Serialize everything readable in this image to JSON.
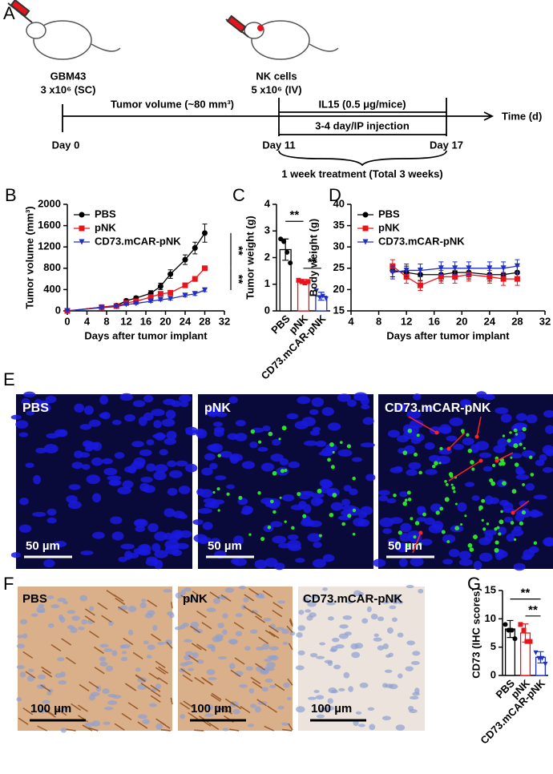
{
  "panel_labels": [
    "A",
    "B",
    "C",
    "D",
    "E",
    "F",
    "G"
  ],
  "timeline": {
    "left_cells": "GBM43",
    "left_dose": "3 x10⁶ (SC)",
    "right_cells": "NK cells",
    "right_dose": "5 x10⁶ (IV)",
    "phase1": "Tumor volume (~80 mm³)",
    "phase2": "IL15 (0.5 μg/mice)",
    "phase3": "3-4 day/IP injection",
    "axis": "Time (d)",
    "day_start": "Day 0",
    "day_mid": "Day 11",
    "day_end": "Day 17",
    "treatment": "1 week treatment (Total 3 weeks)"
  },
  "images_e": {
    "labels": [
      "PBS",
      "pNK",
      "CD73.mCAR-pNK"
    ],
    "scale": "50 µm"
  },
  "images_f": {
    "labels": [
      "PBS",
      "pNK",
      "CD73.mCAR-pNK"
    ],
    "scale": "100 µm"
  },
  "chart_data": [
    {
      "type": "line",
      "xlabel": "Days after tumor implant",
      "ylabel": "Tumor volume (mm³)",
      "x": [
        0,
        7,
        10,
        12,
        14,
        17,
        19,
        21,
        24,
        26,
        28
      ],
      "xlim": [
        0,
        32
      ],
      "xticks": [
        0,
        4,
        8,
        12,
        16,
        20,
        24,
        28,
        32
      ],
      "ylim": [
        0,
        2000
      ],
      "yticks": [
        0,
        400,
        800,
        1200,
        1600,
        2000
      ],
      "series": [
        {
          "name": "PBS",
          "color": "#000000",
          "values": [
            0,
            70,
            100,
            190,
            240,
            330,
            460,
            690,
            960,
            1180,
            1460
          ],
          "errors": [
            0,
            10,
            15,
            30,
            35,
            50,
            60,
            80,
            90,
            110,
            170
          ]
        },
        {
          "name": "pNK",
          "color": "#e8141b",
          "values": [
            0,
            70,
            90,
            150,
            180,
            260,
            320,
            340,
            480,
            600,
            800
          ],
          "errors": [
            0,
            10,
            10,
            20,
            25,
            30,
            35,
            40,
            40,
            45,
            40
          ]
        },
        {
          "name": "CD73.mCAR-pNK",
          "color": "#1f2fc4",
          "values": [
            0,
            60,
            80,
            120,
            140,
            180,
            210,
            230,
            290,
            320,
            390
          ],
          "errors": [
            0,
            8,
            10,
            15,
            15,
            20,
            20,
            25,
            25,
            30,
            30
          ]
        }
      ],
      "annotations": [
        "**",
        "**"
      ]
    },
    {
      "type": "bar",
      "ylabel": "Tumor weight (g)",
      "categories": [
        "PBS",
        "pNK",
        "CD73.mCAR-pNK"
      ],
      "values": [
        2.3,
        1.1,
        0.55
      ],
      "errors": [
        0.4,
        0.08,
        0.15
      ],
      "colors": [
        "#000000",
        "#e8141b",
        "#1f2fc4"
      ],
      "points": [
        [
          2.7,
          2.6,
          2.2,
          1.8
        ],
        [
          1.15,
          1.1,
          1.05,
          1.1
        ],
        [
          0.75,
          0.5,
          0.55,
          0.45
        ]
      ],
      "ylim": [
        0,
        4
      ],
      "yticks": [
        0,
        1,
        2,
        3,
        4
      ],
      "annotations": [
        "**",
        "**"
      ]
    },
    {
      "type": "line",
      "xlabel": "Days after tumor implant",
      "ylabel": "Body weight (g)",
      "x": [
        10,
        12,
        14,
        17,
        19,
        21,
        24,
        26,
        28
      ],
      "xlim": [
        4,
        32
      ],
      "xticks": [
        4,
        8,
        12,
        16,
        20,
        24,
        28,
        32
      ],
      "ylim": [
        15,
        40
      ],
      "yticks": [
        15,
        20,
        25,
        30,
        35,
        40
      ],
      "series": [
        {
          "name": "PBS",
          "color": "#000000",
          "values": [
            24.5,
            24,
            23.5,
            23.5,
            24,
            24,
            23.5,
            23.5,
            24
          ],
          "errors": [
            1.5,
            1.5,
            1.5,
            1.5,
            1.5,
            1.5,
            1.5,
            1.5,
            1.5
          ]
        },
        {
          "name": "pNK",
          "color": "#e8141b",
          "values": [
            25.5,
            23,
            21,
            23,
            23,
            23.5,
            23,
            22.5,
            22.5
          ],
          "errors": [
            1.5,
            1.5,
            1.2,
            1.5,
            1.5,
            1.5,
            1.5,
            1.5,
            1.5
          ]
        },
        {
          "name": "CD73.mCAR-pNK",
          "color": "#1f2fc4",
          "values": [
            24,
            24.5,
            24.5,
            25,
            25,
            25,
            25,
            25,
            25.5
          ],
          "errors": [
            1.5,
            1.5,
            1.5,
            1.5,
            1.5,
            1.5,
            1.5,
            1.5,
            1.5
          ]
        }
      ]
    },
    {
      "type": "bar",
      "ylabel": "CD73 (IHC scores)",
      "categories": [
        "PBS",
        "pNK",
        "CD73.mCAR-pNK"
      ],
      "values": [
        8.2,
        7.5,
        3.2
      ],
      "errors": [
        1.5,
        1.6,
        1.0
      ],
      "colors": [
        "#000000",
        "#e8141b",
        "#1f2fc4"
      ],
      "points": [
        [
          9,
          8,
          8,
          6.5
        ],
        [
          9,
          8,
          6,
          6
        ],
        [
          4,
          3,
          3,
          2
        ]
      ],
      "ylim": [
        0,
        15
      ],
      "yticks": [
        0,
        5,
        10,
        15
      ],
      "annotations": [
        "**",
        "**"
      ]
    }
  ]
}
